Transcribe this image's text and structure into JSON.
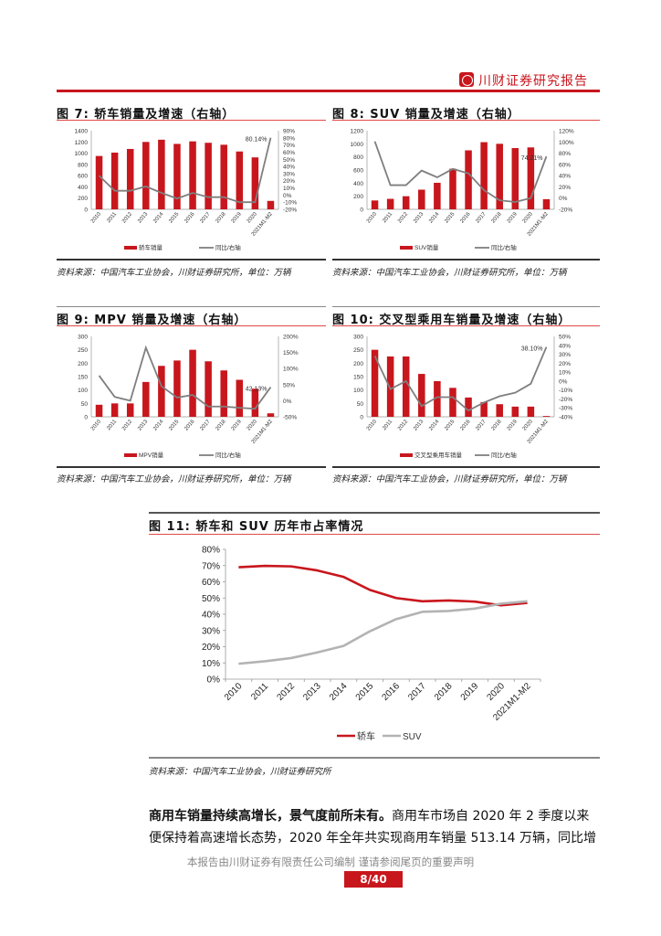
{
  "header": {
    "brand": "川财证券研究报告",
    "logo_icon": "chuancai-logo-icon"
  },
  "colors": {
    "bar": "#c8161d",
    "line": "#7f7f7f",
    "accent": "#c8161d",
    "suv": "#b3b3b3"
  },
  "figures": [
    {
      "title": "图 7:   轿车销量及增速（右轴）",
      "source": "资料来源：中国汽车工业协会，川财证券研究所，单位：万辆"
    },
    {
      "title": "图 8:   SUV 销量及增速（右轴）",
      "source": "资料来源：中国汽车工业协会，川财证券研究所，单位：万辆"
    },
    {
      "title": "图 9:   MPV 销量及增速（右轴）",
      "source": "资料来源：中国汽车工业协会，川财证券研究所，单位：万辆"
    },
    {
      "title": "图 10:  交叉型乘用车销量及增速（右轴）",
      "source": "资料来源：中国汽车工业协会，川财证券研究所，单位：万辆"
    },
    {
      "title": "图 11:  轿车和 SUV 历年市占率情况",
      "source": "资料来源：中国汽车工业协会，川财证券研究所"
    }
  ],
  "chart_data": [
    {
      "type": "bar+line",
      "categories": [
        "2010",
        "2011",
        "2012",
        "2013",
        "2014",
        "2015",
        "2016",
        "2017",
        "2018",
        "2019",
        "2020",
        "2021M1-M2"
      ],
      "series": [
        {
          "name": "轿车销量",
          "axis": "left",
          "values": [
            950,
            1010,
            1075,
            1200,
            1240,
            1165,
            1210,
            1185,
            1150,
            1030,
            925,
            150
          ]
        },
        {
          "name": "同比/右轴",
          "axis": "right",
          "values": [
            27,
            6,
            6,
            12,
            3,
            -5,
            3,
            -3,
            -3,
            -10,
            -10,
            80.14
          ]
        }
      ],
      "ylim_left": [
        0,
        1400
      ],
      "ystep_left": 200,
      "ylim_right": [
        -20,
        90
      ],
      "ystep_right": 10,
      "right_unit": "%",
      "annotation": "80.14%",
      "grid": false,
      "legend": "bottom"
    },
    {
      "type": "bar+line",
      "categories": [
        "2010",
        "2011",
        "2012",
        "2013",
        "2014",
        "2015",
        "2016",
        "2017",
        "2018",
        "2019",
        "2020",
        "2021M1-M2"
      ],
      "series": [
        {
          "name": "SUV销量",
          "axis": "left",
          "values": [
            135,
            160,
            200,
            300,
            405,
            620,
            900,
            1025,
            1000,
            935,
            945,
            155
          ]
        },
        {
          "name": "同比/右轴",
          "axis": "right",
          "values": [
            101,
            23,
            23,
            49,
            37,
            52,
            44,
            14,
            -4,
            -7,
            0,
            74.21
          ]
        }
      ],
      "ylim_left": [
        0,
        1200
      ],
      "ystep_left": 200,
      "ylim_right": [
        -20,
        120
      ],
      "ystep_right": 20,
      "right_unit": "%",
      "annotation": "74.21%",
      "grid": false,
      "legend": "bottom"
    },
    {
      "type": "bar+line",
      "categories": [
        "2010",
        "2011",
        "2012",
        "2013",
        "2014",
        "2015",
        "2016",
        "2017",
        "2018",
        "2019",
        "2020",
        "2021M1-M2"
      ],
      "series": [
        {
          "name": "MPV销量",
          "axis": "left",
          "values": [
            45,
            50,
            50,
            130,
            190,
            210,
            250,
            207,
            173,
            138,
            105,
            13
          ]
        },
        {
          "name": "同比/右轴",
          "axis": "right",
          "values": [
            78,
            12,
            0,
            165,
            45,
            10,
            18,
            -18,
            -18,
            -22,
            -25,
            42.13
          ]
        }
      ],
      "ylim_left": [
        0,
        300
      ],
      "ystep_left": 50,
      "ylim_right": [
        -50,
        200
      ],
      "ystep_right": 50,
      "right_unit": "%",
      "annotation": "42.13%",
      "grid": false,
      "legend": "bottom"
    },
    {
      "type": "bar+line",
      "categories": [
        "2010",
        "2011",
        "2012",
        "2013",
        "2014",
        "2015",
        "2016",
        "2017",
        "2018",
        "2019",
        "2020",
        "2021M1-M2"
      ],
      "series": [
        {
          "name": "交叉型乘用车销量",
          "axis": "left",
          "values": [
            250,
            225,
            225,
            160,
            133,
            108,
            72,
            55,
            47,
            38,
            38,
            3
          ]
        },
        {
          "name": "同比/右轴",
          "axis": "right",
          "values": [
            28,
            -9,
            0,
            -28,
            -18,
            -18,
            -33,
            -24,
            -17,
            -13,
            -3,
            38.1
          ]
        }
      ],
      "ylim_left": [
        0,
        300
      ],
      "ystep_left": 50,
      "ylim_right": [
        -40,
        50
      ],
      "ystep_right": 10,
      "right_unit": "%",
      "annotation": "38.10%",
      "grid": false,
      "legend": "bottom"
    },
    {
      "type": "line",
      "categories": [
        "2010",
        "2011",
        "2012",
        "2013",
        "2014",
        "2015",
        "2016",
        "2017",
        "2018",
        "2019",
        "2020",
        "2021M1-M2"
      ],
      "series": [
        {
          "name": "轿车",
          "values": [
            69,
            69.8,
            69.5,
            67,
            63,
            55,
            50,
            48,
            48.5,
            47.8,
            45.5,
            47
          ]
        },
        {
          "name": "SUV",
          "values": [
            9.5,
            11,
            13,
            16.5,
            20.5,
            29.5,
            37,
            41.5,
            42,
            43.5,
            46.5,
            48
          ]
        }
      ],
      "ylim": [
        0,
        80
      ],
      "ystep": 10,
      "unit": "%",
      "grid": false,
      "legend": "bottom"
    }
  ],
  "body": {
    "lead_bold": "商用车销量持续高增长，景气度前所未有。",
    "line1_rest": "商用车市场自 2020 年 2 季度以来",
    "line2": "便保持着高速增长态势，2020 年全年共实现商用车销量 513.14 万辆，同比增"
  },
  "footer": {
    "disclaimer": "本报告由川财证券有限责任公司编制  谨请参阅尾页的重要声明",
    "page": "8/40"
  }
}
